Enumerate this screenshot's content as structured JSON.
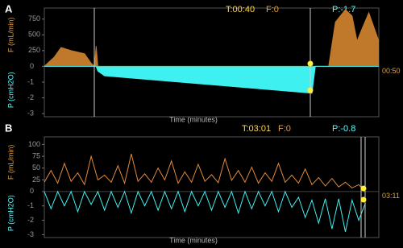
{
  "chart_data": [
    {
      "type": "line",
      "label": "A",
      "time": "T:00:40",
      "flow_reading": "F:0",
      "pressure_reading": "P:-1.7",
      "end_time": "00:50",
      "x_label": "Time (minutes)",
      "y_label": "F (mL/min)",
      "y2_label": "P (cmH2O)",
      "x": [
        0,
        3,
        5,
        8,
        12,
        14,
        15,
        15.5,
        16,
        18,
        80,
        81,
        85,
        87,
        90,
        92,
        93.5,
        95,
        97,
        100
      ],
      "xlim": [
        0,
        100
      ],
      "ylim": [
        -800,
        925
      ],
      "yticks": [
        250,
        500,
        750
      ],
      "y2lim": [
        -3.2,
        3.7
      ],
      "y2ticks": [
        0,
        -1,
        -2,
        -3
      ],
      "series": [
        {
          "color": "#c0782a",
          "values": [
            0,
            150,
            300,
            250,
            200,
            50,
            0,
            320,
            0,
            0,
            0,
            0,
            0,
            700,
            900,
            800,
            400,
            600,
            850,
            400
          ]
        },
        {
          "color": "#3ff0f0",
          "axis": "y2",
          "values": [
            0,
            0,
            0,
            0,
            0,
            0,
            0,
            0,
            -0.3,
            -0.6,
            -1.7,
            0,
            0,
            0,
            0,
            0,
            0,
            0,
            0,
            0
          ]
        }
      ]
    },
    {
      "type": "line",
      "label": "B",
      "time": "T:03:01",
      "flow_reading": "F:0",
      "pressure_reading": "P:-0.8",
      "end_time": "03:11",
      "x_label": "Time (minutes)",
      "y_label": "F (mL/min)",
      "y2_label": "P (cmH2O)",
      "x": [
        0,
        2,
        4,
        6,
        8,
        10,
        12,
        14,
        16,
        18,
        20,
        22,
        24,
        26,
        28,
        30,
        32,
        34,
        36,
        38,
        40,
        42,
        44,
        46,
        48,
        50,
        52,
        54,
        56,
        58,
        60,
        62,
        64,
        66,
        68,
        70,
        72,
        74,
        76,
        78,
        80,
        82,
        84,
        86,
        88,
        90,
        92,
        94,
        96
      ],
      "xlim": [
        0,
        100
      ],
      "ylim": [
        -97,
        116
      ],
      "yticks": [
        25,
        50,
        75,
        100
      ],
      "y2lim": [
        -3.2,
        3.8
      ],
      "y2ticks": [
        0,
        -1,
        -2,
        -3
      ],
      "series": [
        {
          "color": "#e08a3a",
          "values": [
            20,
            45,
            18,
            60,
            22,
            40,
            15,
            75,
            25,
            35,
            20,
            55,
            18,
            80,
            22,
            38,
            20,
            50,
            25,
            65,
            18,
            42,
            20,
            58,
            22,
            36,
            19,
            70,
            24,
            45,
            20,
            52,
            18,
            40,
            22,
            60,
            20,
            35,
            18,
            48,
            15,
            30,
            12,
            28,
            10,
            20,
            8,
            15,
            0
          ]
        },
        {
          "color": "#3ff0f0",
          "axis": "y2",
          "values": [
            0,
            -1.2,
            0,
            -1.0,
            0,
            -1.4,
            0,
            -0.9,
            0,
            -1.3,
            0,
            -1.1,
            0,
            -1.5,
            0,
            -1.0,
            0,
            -1.3,
            0,
            -1.2,
            0,
            -1.4,
            0,
            -1.0,
            0,
            -1.3,
            0,
            -1.1,
            0,
            -1.5,
            0,
            -1.2,
            0,
            -1.0,
            0,
            -1.4,
            0,
            -1.1,
            -0.4,
            -1.8,
            -0.6,
            -2.2,
            -0.5,
            -2.6,
            -0.5,
            -2.8,
            -0.6,
            -2.0,
            -0.8
          ]
        }
      ]
    }
  ]
}
